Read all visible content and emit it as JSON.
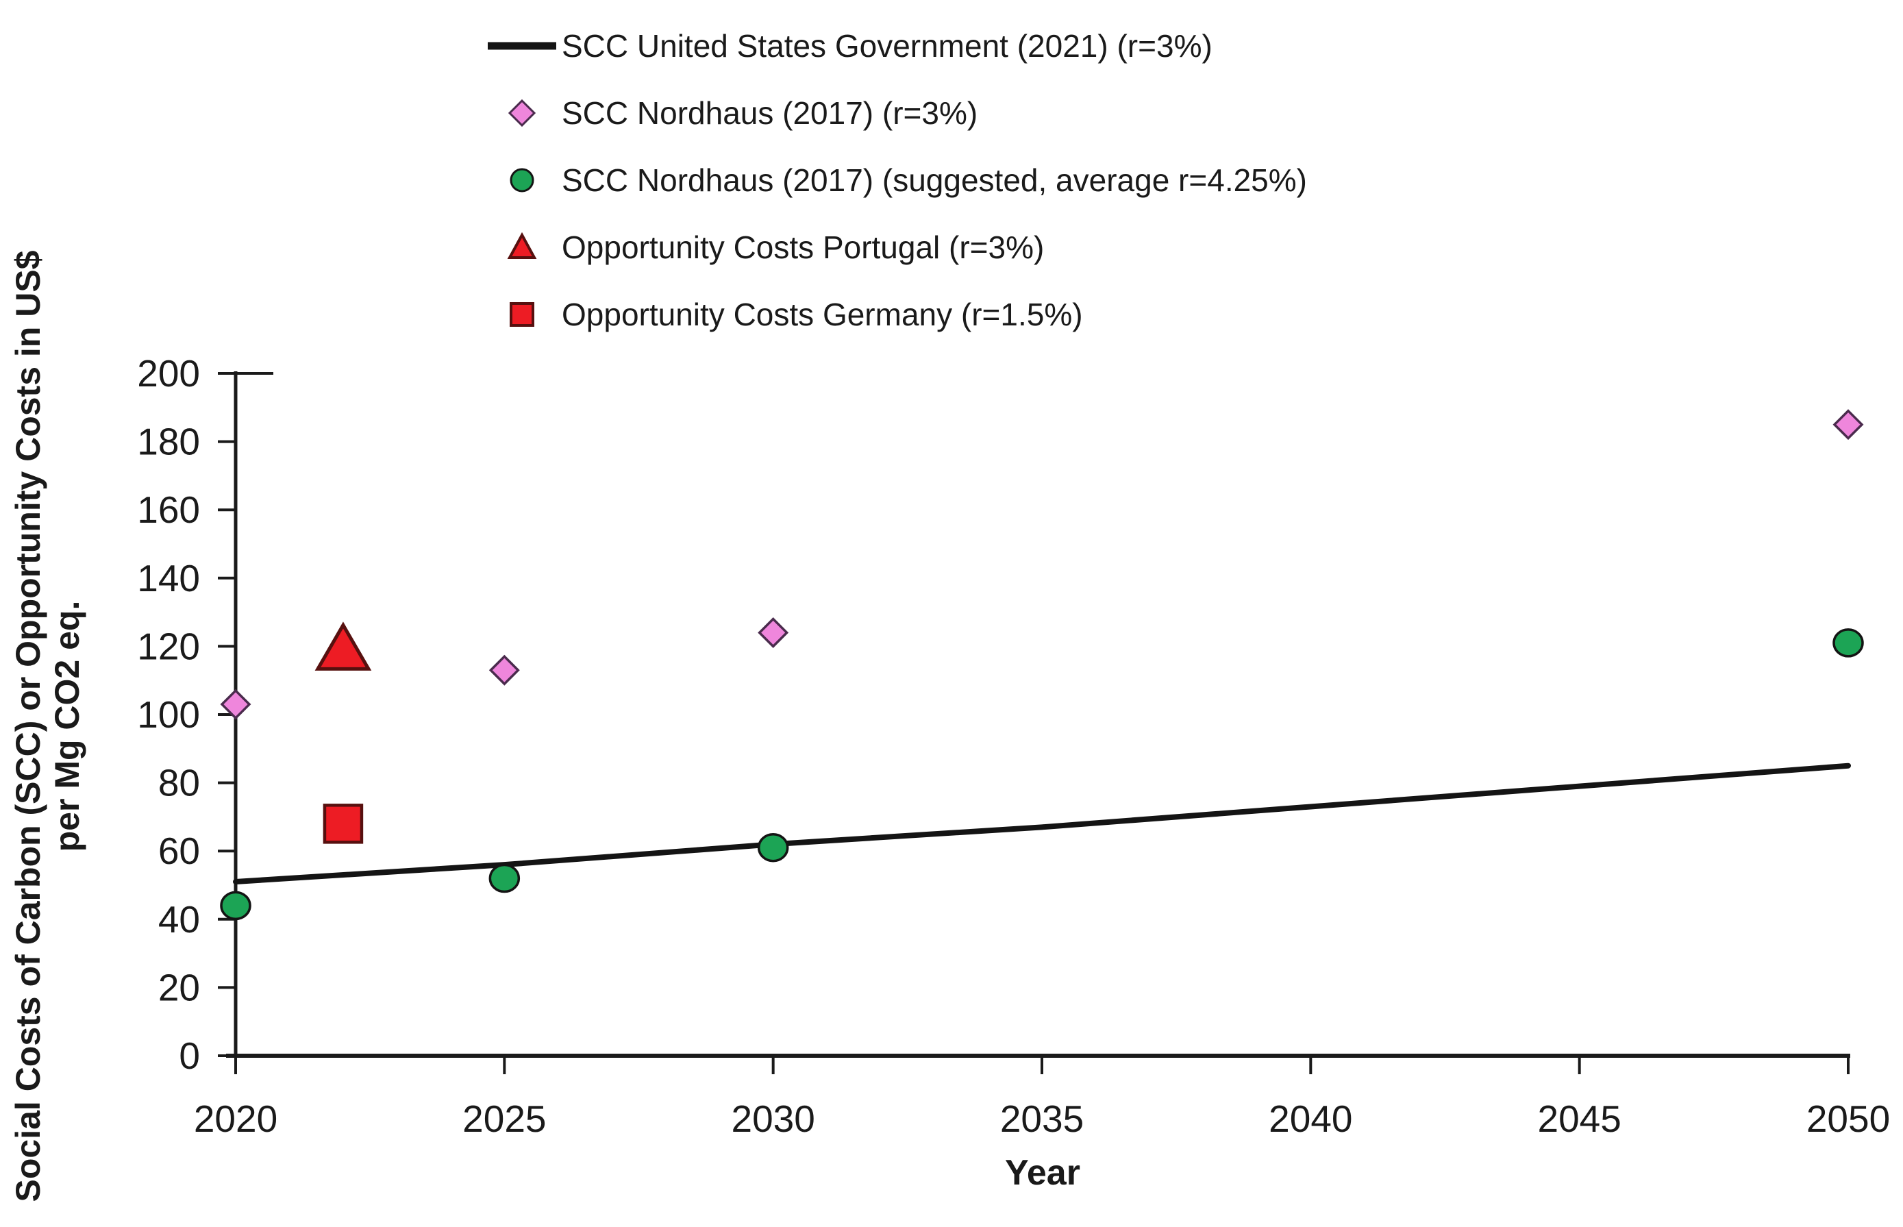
{
  "figure": {
    "background": "#ffffff",
    "axis_color": "#1a1a1a",
    "text_color": "#1a1a1a"
  },
  "chart_data": {
    "type": "line",
    "title": "",
    "xlabel": "Year",
    "ylabel_line1": "Social Costs of Carbon (SCC) or Opportunity Costs in US$",
    "ylabel_line2": "per Mg CO2 eq.",
    "xlim": [
      2020,
      2050
    ],
    "ylim": [
      0,
      200
    ],
    "x_ticks": [
      2020,
      2025,
      2030,
      2035,
      2040,
      2045,
      2050
    ],
    "y_ticks": [
      0,
      20,
      40,
      60,
      80,
      100,
      120,
      140,
      160,
      180,
      200
    ],
    "grid": false,
    "legend_position": "top-center",
    "series": [
      {
        "name": "SCC United States Government (2021) (r=3%)",
        "type": "line",
        "marker": "none",
        "color": "#141414",
        "x": [
          2020,
          2025,
          2030,
          2035,
          2040,
          2045,
          2050
        ],
        "y": [
          51,
          56,
          62,
          67,
          73,
          79,
          85
        ]
      },
      {
        "name": "SCC Nordhaus (2017) (r=3%)",
        "type": "scatter",
        "marker": "diamond",
        "fill": "#EF86DC",
        "stroke": "#4A2B4D",
        "x": [
          2020,
          2025,
          2030,
          2050
        ],
        "y": [
          103,
          113,
          124,
          185
        ]
      },
      {
        "name": "SCC Nordhaus (2017) (suggested, average r=4.25%)",
        "type": "scatter",
        "marker": "circle",
        "fill": "#1CA455",
        "stroke": "#141414",
        "x": [
          2020,
          2025,
          2030,
          2050
        ],
        "y": [
          44,
          52,
          61,
          121
        ]
      },
      {
        "name": "Opportunity Costs Portugal (r=3%)",
        "type": "scatter",
        "marker": "triangle",
        "fill": "#ED1C24",
        "stroke": "#57100F",
        "x": [
          2022
        ],
        "y": [
          119
        ]
      },
      {
        "name": "Opportunity Costs Germany (r=1.5%)",
        "type": "scatter",
        "marker": "square",
        "fill": "#ED1C24",
        "stroke": "#57100F",
        "x": [
          2022
        ],
        "y": [
          68
        ]
      }
    ]
  }
}
